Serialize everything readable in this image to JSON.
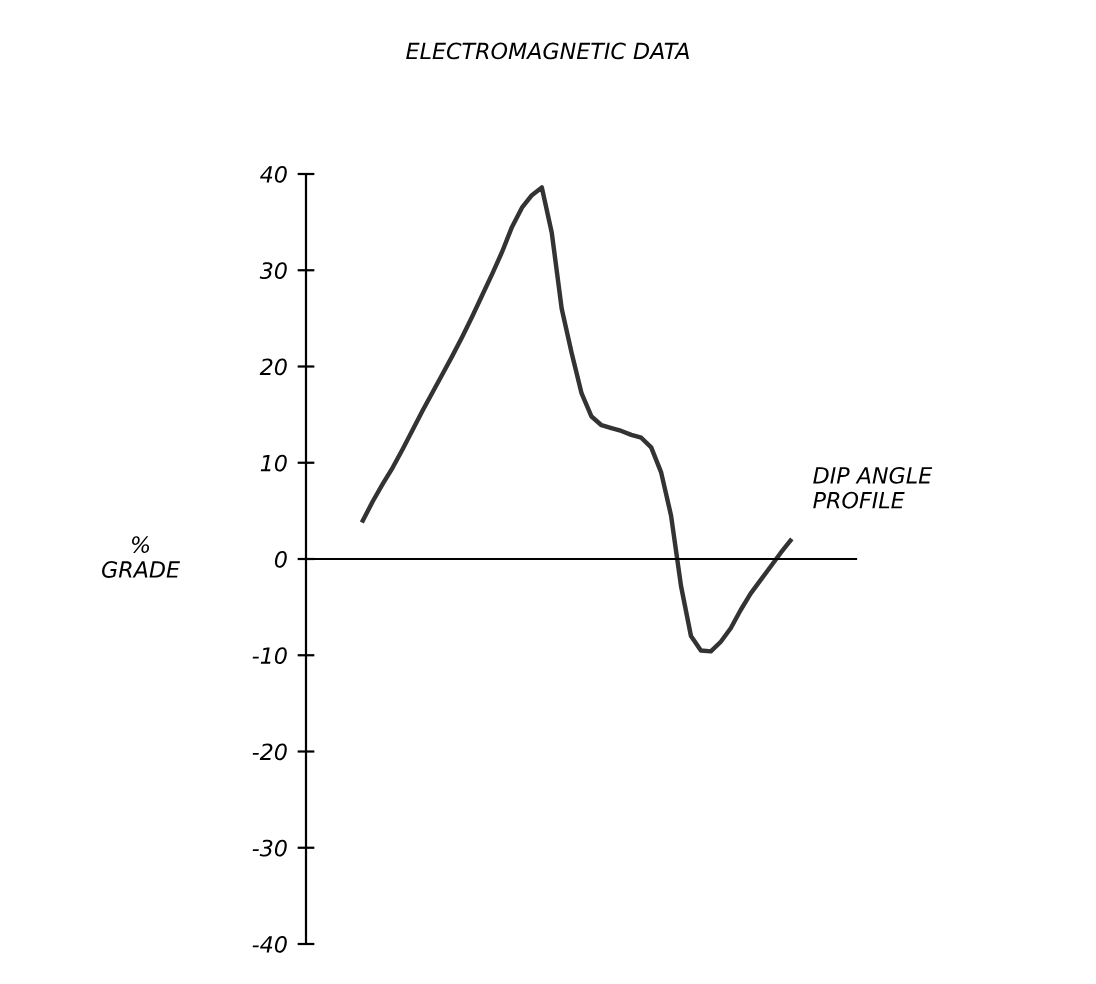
{
  "chart_data": {
    "type": "line",
    "title": "ELECTROMAGNETIC DATA",
    "ylabel": "%\nGRADE",
    "annotations": [
      "DIP ANGLE\nPROFILE"
    ],
    "categories": [
      null,
      null,
      null,
      null,
      null,
      null,
      null,
      null,
      null,
      null,
      null,
      null,
      null,
      null,
      null,
      null,
      null,
      null,
      null,
      null,
      null,
      null,
      null,
      null,
      null,
      null,
      null,
      null,
      null,
      null,
      null,
      null,
      null,
      null,
      null,
      null,
      null,
      null,
      null,
      null,
      null,
      null,
      null,
      null
    ],
    "series": [
      {
        "color": "#333333",
        "values": [
          4.0,
          6.0,
          7.8,
          9.5,
          11.4,
          13.4,
          15.4,
          17.3,
          19.2,
          21.1,
          23.1,
          25.2,
          27.4,
          29.6,
          31.9,
          34.5,
          36.5,
          37.8,
          38.6,
          33.9,
          26.0,
          21.4,
          17.2,
          14.8,
          13.9,
          13.6,
          13.3,
          12.9,
          12.6,
          11.6,
          9.0,
          4.5,
          -2.8,
          -8.0,
          -9.5,
          -9.6,
          -8.6,
          -7.2,
          -5.3,
          -3.6,
          -2.2,
          -0.8,
          0.6,
          1.9
        ]
      }
    ],
    "ylim": [
      -40,
      40
    ],
    "yticks": [
      -40,
      -30,
      -20,
      -10,
      0,
      10,
      20,
      30,
      40
    ],
    "legend": false,
    "marker": "none",
    "line_style": "solid"
  }
}
